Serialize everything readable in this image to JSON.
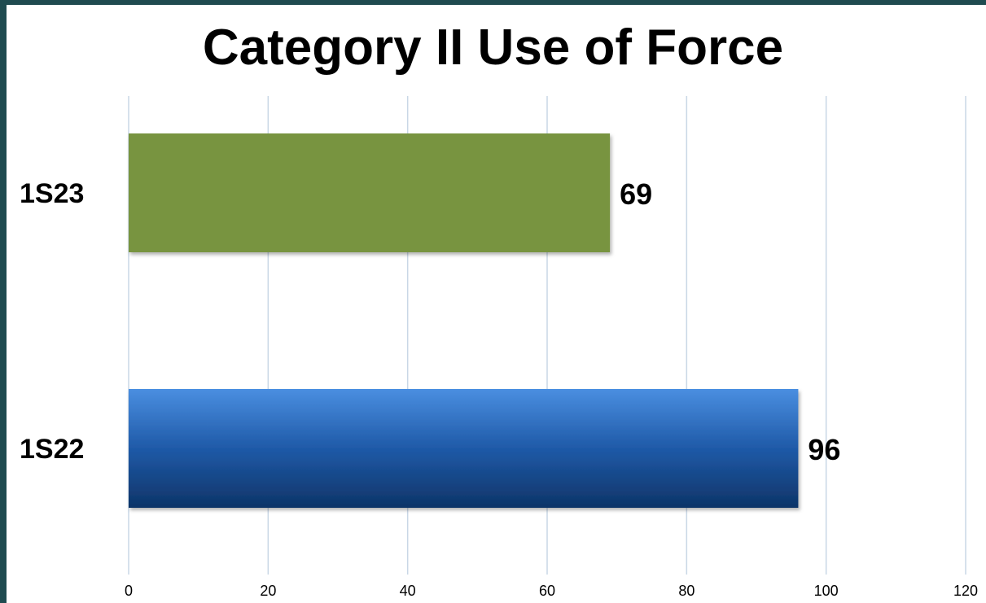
{
  "chart_data": {
    "type": "bar",
    "orientation": "horizontal",
    "title": "Category II Use of Force",
    "categories": [
      "1S23",
      "1S22"
    ],
    "values": [
      69,
      96
    ],
    "colors": [
      "#789440",
      "#1f5aa8"
    ],
    "xlim": [
      0,
      120
    ],
    "xticks": [
      0,
      20,
      40,
      60,
      80,
      100,
      120
    ],
    "xlabel": "",
    "ylabel": "",
    "grid": "vertical",
    "legend": "none",
    "data_labels": true
  }
}
